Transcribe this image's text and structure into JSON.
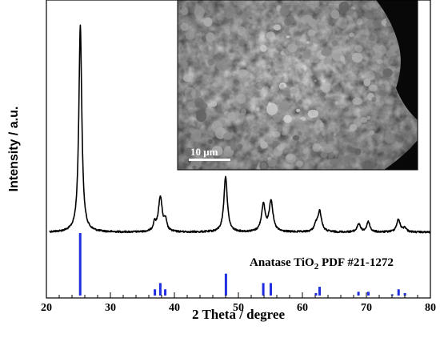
{
  "chart_data": {
    "type": "line",
    "title": "",
    "xlabel": "2 Theta / degree",
    "ylabel": "Intensity / a.u.",
    "xlim": [
      20,
      80
    ],
    "x_ticks": [
      20,
      30,
      40,
      50,
      60,
      70,
      80
    ],
    "grid": false,
    "series": [
      {
        "description_type": "xrd-pattern",
        "baseline": 4,
        "peaks": [
          {
            "x": 25.3,
            "height": 100,
            "width": 0.28
          },
          {
            "x": 36.9,
            "height": 4,
            "width": 0.25
          },
          {
            "x": 37.8,
            "height": 17,
            "width": 0.35
          },
          {
            "x": 38.6,
            "height": 5,
            "width": 0.25
          },
          {
            "x": 48.0,
            "height": 27,
            "width": 0.32
          },
          {
            "x": 53.9,
            "height": 13,
            "width": 0.35
          },
          {
            "x": 55.1,
            "height": 15,
            "width": 0.35
          },
          {
            "x": 62.1,
            "height": 3,
            "width": 0.3
          },
          {
            "x": 62.7,
            "height": 10,
            "width": 0.35
          },
          {
            "x": 68.8,
            "height": 4,
            "width": 0.3
          },
          {
            "x": 70.3,
            "height": 5,
            "width": 0.3
          },
          {
            "x": 75.0,
            "height": 6,
            "width": 0.35
          },
          {
            "x": 76.0,
            "height": 2,
            "width": 0.3
          }
        ]
      }
    ],
    "reference": {
      "label_main": "Anatase TiO",
      "label_sub": "2",
      "label_tail": " PDF #21-1272",
      "color": "#1f2fe0",
      "lines": [
        {
          "x": 25.28,
          "value": 100
        },
        {
          "x": 36.95,
          "value": 10
        },
        {
          "x": 37.8,
          "value": 20
        },
        {
          "x": 38.57,
          "value": 10
        },
        {
          "x": 48.05,
          "value": 35
        },
        {
          "x": 53.89,
          "value": 20
        },
        {
          "x": 55.06,
          "value": 20
        },
        {
          "x": 62.12,
          "value": 4
        },
        {
          "x": 62.69,
          "value": 14
        },
        {
          "x": 68.76,
          "value": 6
        },
        {
          "x": 70.31,
          "value": 6
        },
        {
          "x": 74.03,
          "value": 2
        },
        {
          "x": 75.03,
          "value": 10
        },
        {
          "x": 76.02,
          "value": 4
        }
      ]
    },
    "inset": {
      "kind": "sem-micrograph",
      "scale_bar_label": "10 μm"
    }
  }
}
